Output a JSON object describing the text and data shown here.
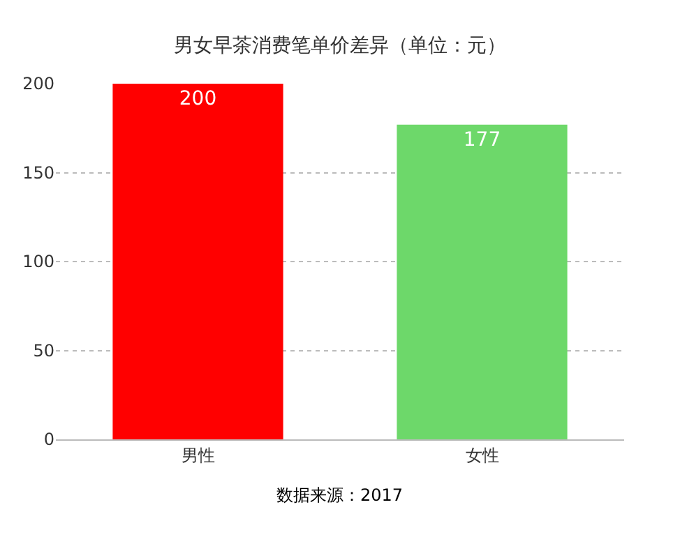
{
  "chart_data": {
    "type": "bar",
    "title": "男女早茶消费笔单价差异（单位：元）",
    "categories": [
      "男性",
      "女性"
    ],
    "values": [
      200,
      177
    ],
    "colors": [
      "#ff0000",
      "#6dd86a"
    ],
    "ylim": [
      0,
      200
    ],
    "yticks": [
      0,
      50,
      100,
      150,
      200
    ],
    "grid": "y",
    "data_labels": true,
    "annotations": [
      "数据来源：2017"
    ]
  }
}
